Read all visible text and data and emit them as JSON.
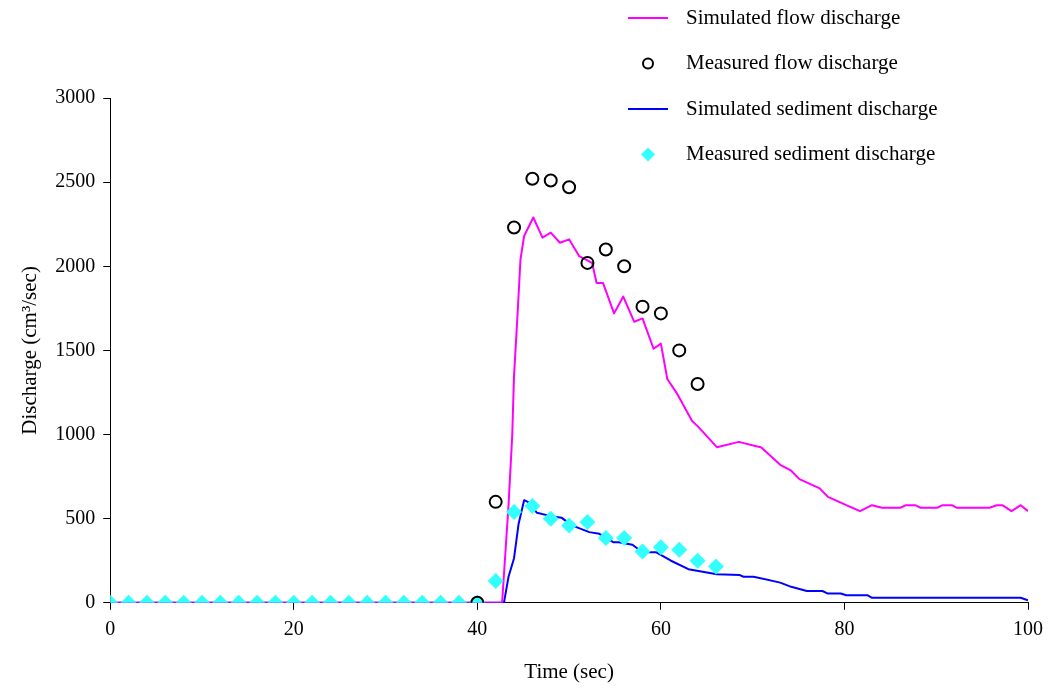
{
  "chart_data": {
    "type": "line",
    "xlabel": "Time (sec)",
    "ylabel": "Discharge (cm³/sec)",
    "xlim": [
      0,
      100
    ],
    "xticks": [
      0,
      20,
      40,
      60,
      80,
      100
    ],
    "ylim": [
      0,
      3000
    ],
    "yticks": [
      0,
      500,
      1000,
      1500,
      2000,
      2500,
      3000
    ],
    "grid": false,
    "legend": "top right",
    "series": [
      {
        "name": "Simulated flow discharge",
        "type": "line",
        "marker": "none",
        "color": "#ff00ff",
        "x": [
          0,
          42.7,
          43.4,
          43.8,
          44,
          44.4,
          44.7,
          45.1,
          46.1,
          47.1,
          48,
          49,
          50,
          51.1,
          52.5,
          53,
          53.7,
          54.9,
          55.9,
          57.1,
          58,
          59.2,
          60,
          60.7,
          61.8,
          63.4,
          64,
          66.1,
          68.4,
          68.6,
          70.4,
          70.9,
          73,
          74.2,
          75.1,
          77.3,
          78.2,
          80.2,
          81.7,
          83,
          84.1,
          86.1,
          86.7,
          87.7,
          88.3,
          90.1,
          90.7,
          91.7,
          92.2,
          95.8,
          96.6,
          97.2,
          98.2,
          99.2,
          100
        ],
        "values": [
          0,
          0,
          580,
          990,
          1350,
          1730,
          2040,
          2180,
          2290,
          2170,
          2200,
          2140,
          2160,
          2060,
          2020,
          1900,
          1900,
          1720,
          1820,
          1670,
          1690,
          1510,
          1540,
          1330,
          1240,
          1080,
          1050,
          925,
          955,
          955,
          930,
          925,
          820,
          785,
          735,
          680,
          630,
          580,
          545,
          580,
          565,
          565,
          580,
          580,
          565,
          565,
          580,
          580,
          565,
          565,
          580,
          580,
          545,
          580,
          545
        ]
      },
      {
        "name": "Measured flow discharge",
        "type": "scatter",
        "marker": "circle",
        "color": "#000000",
        "x": [
          40,
          42,
          44,
          46,
          48,
          50,
          52,
          54,
          56,
          58,
          60,
          62,
          64
        ],
        "values": [
          0,
          600,
          2230,
          2520,
          2510,
          2470,
          2020,
          2100,
          2000,
          1760,
          1720,
          1500,
          1300
        ]
      },
      {
        "name": "Simulated sediment discharge",
        "type": "line",
        "marker": "none",
        "color": "#0000ff",
        "x": [
          0,
          42.3,
          42.7,
          42.9,
          43.4,
          44,
          44.5,
          45.1,
          45.5,
          46.5,
          48,
          49.2,
          50.3,
          52.2,
          53.3,
          54.8,
          55.4,
          56.9,
          58,
          59.5,
          61.1,
          63,
          66.1,
          68.6,
          69,
          70.1,
          73,
          74.2,
          75.9,
          77.6,
          78.2,
          79.6,
          80.2,
          82.5,
          83,
          99.2,
          100
        ],
        "values": [
          0,
          0,
          0,
          0,
          155,
          265,
          470,
          610,
          600,
          535,
          515,
          505,
          460,
          420,
          410,
          360,
          360,
          345,
          300,
          300,
          250,
          200,
          170,
          165,
          155,
          155,
          120,
          95,
          70,
          70,
          55,
          55,
          45,
          45,
          30,
          30,
          15
        ]
      },
      {
        "name": "Measured sediment discharge",
        "type": "scatter",
        "marker": "diamond",
        "color": "#33ffff",
        "x": [
          0,
          2,
          4,
          6,
          8,
          10,
          12,
          14,
          16,
          18,
          20,
          22,
          24,
          26,
          28,
          30,
          32,
          34,
          36,
          38,
          40,
          42,
          44,
          46,
          48,
          50,
          52,
          54,
          56,
          58,
          60,
          62,
          64,
          66
        ],
        "values": [
          0,
          0,
          0,
          0,
          0,
          0,
          0,
          0,
          0,
          0,
          0,
          0,
          0,
          0,
          0,
          0,
          0,
          0,
          0,
          0,
          0,
          130,
          540,
          575,
          500,
          460,
          480,
          385,
          385,
          305,
          330,
          315,
          250,
          215
        ]
      }
    ]
  }
}
